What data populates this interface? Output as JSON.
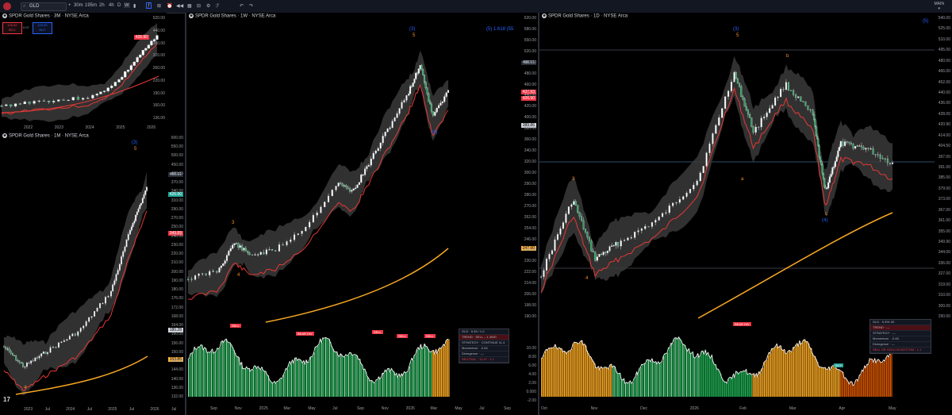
{
  "toolbar": {
    "symbol": "GLD",
    "intervals": [
      "30m",
      "195m",
      "2h",
      "4h",
      "D",
      "W"
    ],
    "layout_label": "MAIN"
  },
  "pane_3m": {
    "title": "SPDR Gold Shares · 3M · NYSE Arca",
    "sell_price": "426.82",
    "sell_label": "SELL",
    "spread": "0.07",
    "buy_price": "426.89",
    "buy_label": "BUY",
    "price_badge": "426.90",
    "yaxis": [
      "520.00",
      "440.00",
      "380.00",
      "320.00",
      "260.00",
      "220.00",
      "190.00",
      "160.00",
      "136.00"
    ],
    "xaxis": [
      "2022",
      "2023",
      "2024",
      "2025",
      "2026"
    ]
  },
  "pane_1m": {
    "title": "SPDR Gold Shares · 1M · NYSE Arca",
    "wave_top_blue": "(3)",
    "wave_top_orange": "5",
    "wave_bottom": "4",
    "badges": [
      {
        "text": "486.91",
        "color": "#d1d4dc",
        "bg": "#2a2e39"
      },
      {
        "text": "426.90",
        "color": "#ffffff",
        "bg": "#26a69a"
      },
      {
        "text": "349.89",
        "color": "#ffffff",
        "bg": "#f23645"
      },
      {
        "text": "180.28",
        "color": "#000000",
        "bg": "#d1d4dc"
      },
      {
        "text": "163.86",
        "color": "#000000",
        "bg": "#f5b041"
      }
    ],
    "yaxis": [
      "600.00",
      "550.00",
      "500.00",
      "450.00",
      "400.00",
      "370.00",
      "340.00",
      "310.00",
      "290.00",
      "270.00",
      "250.00",
      "240.00",
      "230.00",
      "220.00",
      "210.00",
      "200.00",
      "190.00",
      "180.00",
      "176.00",
      "172.00",
      "168.00",
      "164.00",
      "160.00",
      "156.00",
      "150.00",
      "148.00",
      "144.00",
      "140.00",
      "136.00",
      "132.00"
    ],
    "xaxis": [
      "2023",
      "Jul",
      "2024",
      "Jul",
      "2025",
      "Jul",
      "2026",
      "Jul"
    ]
  },
  "pane_1w": {
    "title": "SPDR Gold Shares · 1W · NYSE Arca",
    "wave_top_blue": "(3)",
    "wave_top_orange": "5",
    "fib_label": "(5) 1.618 (55",
    "wave_3": "3",
    "wave_4_orange": "4",
    "wave_4_blue": "(4)",
    "signals": [
      "SELL",
      "BEAR DIV",
      "SELL",
      "SELL",
      "SELL"
    ],
    "badges": [
      {
        "text": "486.91",
        "color": "#d1d4dc",
        "bg": "#2a2e39"
      },
      {
        "text": "437.93",
        "color": "#ffffff",
        "bg": "#f23645"
      },
      {
        "text": "426.90",
        "color": "#ffffff",
        "bg": "#f23645"
      },
      {
        "text": "389.86",
        "color": "#000000",
        "bg": "#d1d4dc"
      },
      {
        "text": "247.90",
        "color": "#000000",
        "bg": "#f5b041"
      }
    ],
    "yaxis": [
      "620.00",
      "580.00",
      "550.00",
      "520.00",
      "500.00",
      "480.00",
      "460.00",
      "440.00",
      "420.00",
      "400.00",
      "380.00",
      "360.00",
      "340.00",
      "320.00",
      "300.00",
      "290.00",
      "280.00",
      "270.00",
      "262.00",
      "254.00",
      "246.00",
      "238.00",
      "230.00",
      "222.00",
      "214.00",
      "206.00",
      "198.00",
      "190.00"
    ],
    "xaxis": [
      "Sep",
      "Nov",
      "2025",
      "Mar",
      "May",
      "Jul",
      "Sep",
      "Nov",
      "2026",
      "Mar",
      "May",
      "Jul",
      "Sep"
    ],
    "osc_axis": [
      "10.00",
      "8.00",
      "6.00",
      "4.00",
      "2.00",
      "0.000",
      "-2.00"
    ],
    "osc_badges": [
      {
        "text": "6.43",
        "color": "#000000",
        "bg": "#ffffff"
      },
      {
        "text": "6.39",
        "color": "#ffffff",
        "bg": "#f23645"
      },
      {
        "text": "5.20",
        "color": "#000000",
        "bg": "#f5b041"
      }
    ],
    "table": [
      "GLD · 5.39 / 1.0",
      "TREND · SELL – 1.3000",
      "STRATEGY · CONTINUE 11.4",
      "Momentum · -0.54",
      "Divergence · —",
      "NEUTRAL · 11.47 · 1.1"
    ]
  },
  "pane_1d": {
    "title": "SPDR Gold Shares · 1D · NYSE Arca",
    "wave_top_blue": "(3)",
    "wave_top_orange": "5",
    "corner_blue": "(5)",
    "wave_b": "b",
    "wave_3": "3",
    "wave_a": "a",
    "wave_4_orange": "4",
    "wave_c": "c",
    "wave_4_blue": "(4)",
    "signals": [
      "BEAR DIV",
      "BUY"
    ],
    "yaxis": [
      "540.00",
      "525.00",
      "510.00",
      "495.00",
      "480.00",
      "466.00",
      "452.00",
      "440.00",
      "436.00",
      "428.00",
      "420.90",
      "414.00",
      "404.50",
      "397.00",
      "391.00",
      "385.00",
      "379.00",
      "373.00",
      "367.00",
      "361.00",
      "355.00",
      "349.90",
      "344.00",
      "336.00",
      "327.00",
      "319.00",
      "310.00",
      "300.00",
      "290.00"
    ],
    "xaxis": [
      "Oct",
      "Nov",
      "Dec",
      "2026",
      "Feb",
      "Mar",
      "Apr",
      "May"
    ],
    "table": [
      "GLD · 5.391.00",
      "TREND · —",
      "STRATEGY · —",
      "Momentum · -0.48",
      "Divergence · —",
      "SELL OR HOLD IN BOTTOM · 1.1"
    ]
  },
  "colors": {
    "up": "#26a69a",
    "down": "#f23645",
    "ma_red": "#e53935",
    "ma_orange": "#f5a623",
    "band": "#3a3a3a",
    "wave_blue": "#2962ff",
    "wave_orange": "#f7931a"
  }
}
